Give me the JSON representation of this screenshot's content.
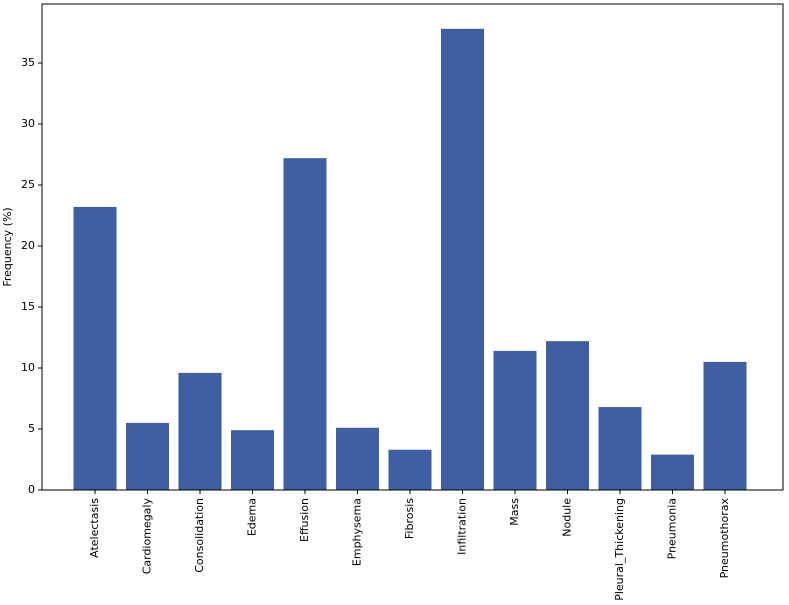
{
  "chart_data": {
    "type": "bar",
    "title": "",
    "xlabel": "",
    "ylabel": "Frequency (%)",
    "ylim": [
      0,
      38
    ],
    "yticks": [
      0,
      5,
      10,
      15,
      20,
      25,
      30,
      35
    ],
    "grid": false,
    "bar_color": "#3e60a2",
    "categories": [
      "Atelectasis",
      "Cardiomegaly",
      "Consolidation",
      "Edema",
      "Effusion",
      "Emphysema",
      "Fibrosis",
      "Infiltration",
      "Mass",
      "Nodule",
      "Pleural_Thickening",
      "Pneumonia",
      "Pneumothorax"
    ],
    "values": [
      23.2,
      5.5,
      9.6,
      4.9,
      27.2,
      5.1,
      3.3,
      37.8,
      11.4,
      12.2,
      6.8,
      2.9,
      10.5
    ]
  }
}
